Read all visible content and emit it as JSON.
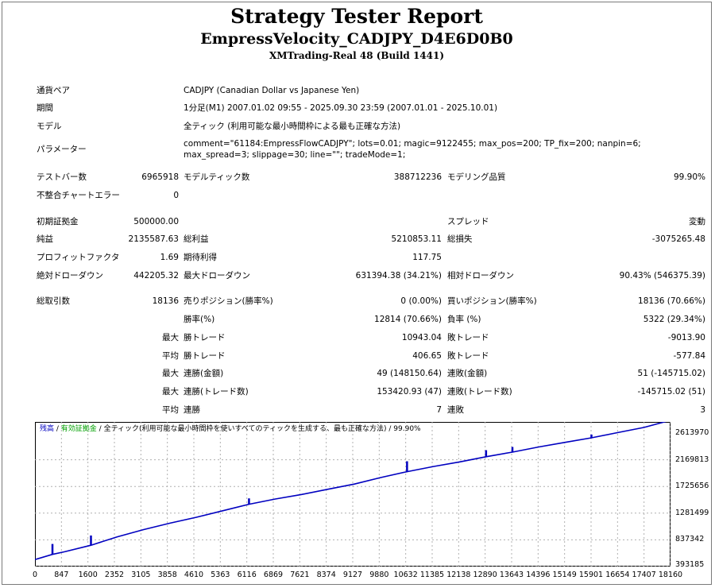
{
  "header": {
    "title": "Strategy Tester Report",
    "ea_name": "EmpressVelocity_CADJPY_D4E6D0B0",
    "server": "XMTrading-Real 48 (Build 1441)"
  },
  "settings": {
    "symbol_label": "通貨ペア",
    "symbol_value": "CADJPY (Canadian Dollar vs Japanese Yen)",
    "period_label": "期間",
    "period_value": "1分足(M1) 2007.01.02 09:55 - 2025.09.30 23:59 (2007.01.01 - 2025.10.01)",
    "model_label": "モデル",
    "model_value": "全ティック (利用可能な最小時間枠による最も正確な方法)",
    "params_label": "パラメーター",
    "params_value": "comment=\"61184:EmpressFlowCADJPY\"; lots=0.01; magic=9122455; max_pos=200; TP_fix=200; nanpin=6; max_spread=3; slippage=30; line=\"\"; tradeMode=1;"
  },
  "stats": {
    "bars_label": "テストバー数",
    "bars_value": "6965918",
    "ticks_label": "モデルティック数",
    "ticks_value": "388712236",
    "quality_label": "モデリング品質",
    "quality_value": "99.90%",
    "mismatch_label": "不整合チャートエラー",
    "mismatch_value": "0",
    "deposit_label": "初期証拠金",
    "deposit_value": "500000.00",
    "spread_label": "スプレッド",
    "spread_value": "変動",
    "net_label": "純益",
    "net_value": "2135587.63",
    "gross_profit_label": "総利益",
    "gross_profit_value": "5210853.11",
    "gross_loss_label": "総損失",
    "gross_loss_value": "-3075265.48",
    "pf_label": "プロフィットファクタ",
    "pf_value": "1.69",
    "expected_label": "期待利得",
    "expected_value": "117.75",
    "abs_dd_label": "絶対ドローダウン",
    "abs_dd_value": "442205.32",
    "max_dd_label": "最大ドローダウン",
    "max_dd_value": "631394.38 (34.21%)",
    "rel_dd_label": "相対ドローダウン",
    "rel_dd_value": "90.43% (546375.39)",
    "total_trades_label": "総取引数",
    "total_trades_value": "18136",
    "short_label": "売りポジション(勝率%)",
    "short_value": "0 (0.00%)",
    "long_label": "買いポジション(勝率%)",
    "long_value": "18136 (70.66%)",
    "win_rate_label": "勝率(%)",
    "win_rate_value": "12814 (70.66%)",
    "loss_rate_label": "負率 (%)",
    "loss_rate_value": "5322 (29.34%)",
    "max_label": "最大",
    "avg_label": "平均",
    "win_trade_label": "勝トレード",
    "loss_trade_label": "敗トレード",
    "largest_win_value": "10943.04",
    "largest_loss_value": "-9013.90",
    "avg_win_value": "406.65",
    "avg_loss_value": "-577.84",
    "consec_win_amt_label": "連勝(金額)",
    "consec_win_amt_value": "49 (148150.64)",
    "consec_loss_amt_label": "連敗(金額)",
    "consec_loss_amt_value": "51 (-145715.02)",
    "consec_win_cnt_label": "連勝(トレード数)",
    "consec_win_cnt_value": "153420.93 (47)",
    "consec_loss_cnt_label": "連敗(トレード数)",
    "consec_loss_cnt_value": "-145715.02 (51)",
    "avg_consec_win_label": "連勝",
    "avg_consec_win_value": "7",
    "avg_consec_loss_label": "連敗",
    "avg_consec_loss_value": "3"
  },
  "chart": {
    "legend_balance": "残高",
    "legend_sep1": " / ",
    "legend_equity": "有効証拠金",
    "legend_sep2": " / ",
    "legend_model": "全ティック(利用可能な最小時間枠を使いすべてのティックを生成する、最も正確な方法)",
    "legend_sep3": " / ",
    "legend_quality": "99.90%",
    "balance_color": "#0000c0",
    "equity_color": "#00a000"
  },
  "chart_data": {
    "type": "line",
    "y_ticks": [
      "2613970",
      "2169813",
      "1725656",
      "1281499",
      "837342",
      "393185"
    ],
    "x_ticks": [
      "0",
      "847",
      "1600",
      "2352",
      "3105",
      "3858",
      "4610",
      "5363",
      "6116",
      "6869",
      "7621",
      "8374",
      "9127",
      "9880",
      "10632",
      "11385",
      "12138",
      "12890",
      "13643",
      "14396",
      "15149",
      "15901",
      "16654",
      "17407",
      "18160"
    ],
    "ylim": [
      393185,
      2613970
    ],
    "xlim": [
      0,
      18160
    ],
    "series": [
      {
        "x": [
          0,
          500,
          847,
          1600,
          2352,
          3105,
          3858,
          4610,
          5363,
          6116,
          6869,
          7621,
          8374,
          9127,
          9880,
          10632,
          11385,
          12138,
          12890,
          13643,
          14396,
          15149,
          15901,
          16654,
          17407,
          18136
        ],
        "values": [
          500000,
          580000,
          620000,
          720000,
          850000,
          960000,
          1060000,
          1150000,
          1250000,
          1350000,
          1430000,
          1500000,
          1580000,
          1660000,
          1760000,
          1850000,
          1930000,
          2000000,
          2080000,
          2150000,
          2230000,
          2300000,
          2370000,
          2450000,
          2530000,
          2635587
        ]
      }
    ],
    "spikes": [
      {
        "x": 500,
        "values": [
          580000,
          740000
        ]
      },
      {
        "x": 1600,
        "values": [
          720000,
          870000
        ]
      },
      {
        "x": 6116,
        "values": [
          1350000,
          1440000
        ]
      },
      {
        "x": 10632,
        "values": [
          1850000,
          2010000
        ]
      },
      {
        "x": 12890,
        "values": [
          2080000,
          2180000
        ]
      },
      {
        "x": 13643,
        "values": [
          2150000,
          2230000
        ]
      },
      {
        "x": 15901,
        "values": [
          2370000,
          2420000
        ]
      }
    ]
  }
}
